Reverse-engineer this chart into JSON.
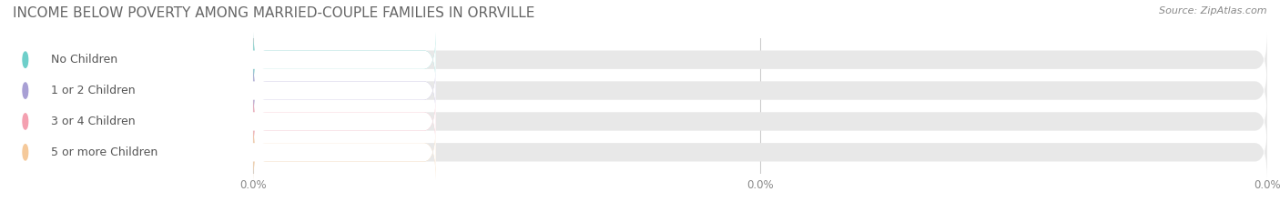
{
  "title": "INCOME BELOW POVERTY AMONG MARRIED-COUPLE FAMILIES IN ORRVILLE",
  "source": "Source: ZipAtlas.com",
  "categories": [
    "No Children",
    "1 or 2 Children",
    "3 or 4 Children",
    "5 or more Children"
  ],
  "values": [
    0.0,
    0.0,
    0.0,
    0.0
  ],
  "bar_colors": [
    "#6ECFCA",
    "#A89FD4",
    "#F4A0B0",
    "#F5C99A"
  ],
  "background_color": "#ffffff",
  "bar_bg_color": "#e8e8e8",
  "title_fontsize": 11,
  "label_fontsize": 9,
  "value_fontsize": 8.5,
  "source_fontsize": 8
}
